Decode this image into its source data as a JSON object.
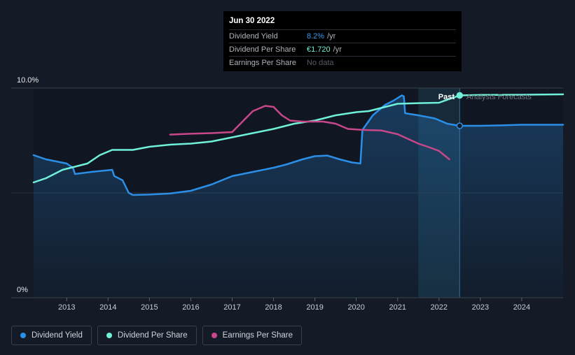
{
  "chart_data": {
    "type": "line",
    "y_min_label": "0%",
    "y_max_label": "10.0%",
    "ylim": [
      0,
      10
    ],
    "xlim": [
      2012.2,
      2025.0
    ],
    "x_ticks": [
      "2013",
      "2014",
      "2015",
      "2016",
      "2017",
      "2018",
      "2019",
      "2020",
      "2021",
      "2022",
      "2023",
      "2024"
    ],
    "past_label": "Past",
    "forecast_label": "Analysts Forecasts",
    "divider_x": 2022.5,
    "forecast_shade_start": 2021.5,
    "series": [
      {
        "name": "Dividend Yield",
        "color": "#2b8fe8",
        "area": true,
        "points": [
          [
            2012.2,
            6.8
          ],
          [
            2012.5,
            6.6
          ],
          [
            2013.0,
            6.4
          ],
          [
            2013.15,
            6.2
          ],
          [
            2013.2,
            5.9
          ],
          [
            2013.6,
            6.0
          ],
          [
            2014.1,
            6.1
          ],
          [
            2014.15,
            5.8
          ],
          [
            2014.35,
            5.6
          ],
          [
            2014.5,
            5.0
          ],
          [
            2014.6,
            4.9
          ],
          [
            2015.0,
            4.92
          ],
          [
            2015.5,
            4.97
          ],
          [
            2016.0,
            5.1
          ],
          [
            2016.5,
            5.4
          ],
          [
            2017.0,
            5.8
          ],
          [
            2017.5,
            6.0
          ],
          [
            2018.0,
            6.2
          ],
          [
            2018.3,
            6.35
          ],
          [
            2018.7,
            6.6
          ],
          [
            2019.0,
            6.75
          ],
          [
            2019.3,
            6.78
          ],
          [
            2019.6,
            6.6
          ],
          [
            2019.9,
            6.45
          ],
          [
            2020.1,
            6.4
          ],
          [
            2020.15,
            8.0
          ],
          [
            2020.4,
            8.7
          ],
          [
            2020.7,
            9.2
          ],
          [
            2020.9,
            9.4
          ],
          [
            2021.1,
            9.65
          ],
          [
            2021.15,
            9.6
          ],
          [
            2021.18,
            8.8
          ],
          [
            2021.5,
            8.7
          ],
          [
            2021.9,
            8.55
          ],
          [
            2022.2,
            8.3
          ],
          [
            2022.5,
            8.2
          ],
          [
            2023.0,
            8.2
          ],
          [
            2023.5,
            8.22
          ],
          [
            2024.0,
            8.25
          ],
          [
            2025.0,
            8.25
          ]
        ]
      },
      {
        "name": "Dividend Per Share",
        "color": "#6ff0d8",
        "area": false,
        "points": [
          [
            2012.2,
            5.5
          ],
          [
            2012.5,
            5.7
          ],
          [
            2012.9,
            6.1
          ],
          [
            2013.2,
            6.25
          ],
          [
            2013.5,
            6.4
          ],
          [
            2013.8,
            6.8
          ],
          [
            2014.1,
            7.05
          ],
          [
            2014.6,
            7.05
          ],
          [
            2015.0,
            7.2
          ],
          [
            2015.5,
            7.3
          ],
          [
            2016.0,
            7.35
          ],
          [
            2016.5,
            7.45
          ],
          [
            2017.0,
            7.65
          ],
          [
            2017.5,
            7.85
          ],
          [
            2018.0,
            8.05
          ],
          [
            2018.5,
            8.3
          ],
          [
            2019.0,
            8.45
          ],
          [
            2019.5,
            8.7
          ],
          [
            2020.0,
            8.85
          ],
          [
            2020.3,
            8.9
          ],
          [
            2020.6,
            9.05
          ],
          [
            2021.0,
            9.25
          ],
          [
            2021.5,
            9.28
          ],
          [
            2022.0,
            9.3
          ],
          [
            2022.5,
            9.65
          ],
          [
            2023.0,
            9.67
          ],
          [
            2024.0,
            9.68
          ],
          [
            2025.0,
            9.7
          ]
        ]
      },
      {
        "name": "Earnings Per Share",
        "color": "#c8478a",
        "area": false,
        "points": [
          [
            2015.5,
            7.78
          ],
          [
            2016.0,
            7.82
          ],
          [
            2016.5,
            7.85
          ],
          [
            2017.0,
            7.9
          ],
          [
            2017.2,
            8.3
          ],
          [
            2017.5,
            8.9
          ],
          [
            2017.8,
            9.15
          ],
          [
            2018.0,
            9.1
          ],
          [
            2018.2,
            8.7
          ],
          [
            2018.4,
            8.45
          ],
          [
            2018.7,
            8.4
          ],
          [
            2019.2,
            8.4
          ],
          [
            2019.5,
            8.3
          ],
          [
            2019.8,
            8.05
          ],
          [
            2020.2,
            8.0
          ],
          [
            2020.6,
            7.98
          ],
          [
            2021.0,
            7.8
          ],
          [
            2021.5,
            7.35
          ],
          [
            2021.8,
            7.15
          ],
          [
            2022.0,
            7.0
          ],
          [
            2022.25,
            6.6
          ]
        ]
      }
    ],
    "highlight": {
      "x": 2022.5,
      "markers": [
        {
          "series": "Dividend Yield",
          "y": 8.2
        },
        {
          "series": "Dividend Per Share",
          "y": 9.65
        }
      ]
    }
  },
  "tooltip": {
    "date": "Jun 30 2022",
    "rows": [
      {
        "label": "Dividend Yield",
        "value": "8.2%",
        "unit": "/yr"
      },
      {
        "label": "Dividend Per Share",
        "value": "€1.720",
        "unit": "/yr"
      },
      {
        "label": "Earnings Per Share",
        "value": "No data"
      }
    ]
  },
  "legend": [
    {
      "label": "Dividend Yield",
      "color": "#2b8fe8"
    },
    {
      "label": "Dividend Per Share",
      "color": "#6ff0d8"
    },
    {
      "label": "Earnings Per Share",
      "color": "#c8478a"
    }
  ],
  "colors": {
    "background": "#151b26",
    "grid": "#3b414b",
    "plot_area": "#111722"
  }
}
